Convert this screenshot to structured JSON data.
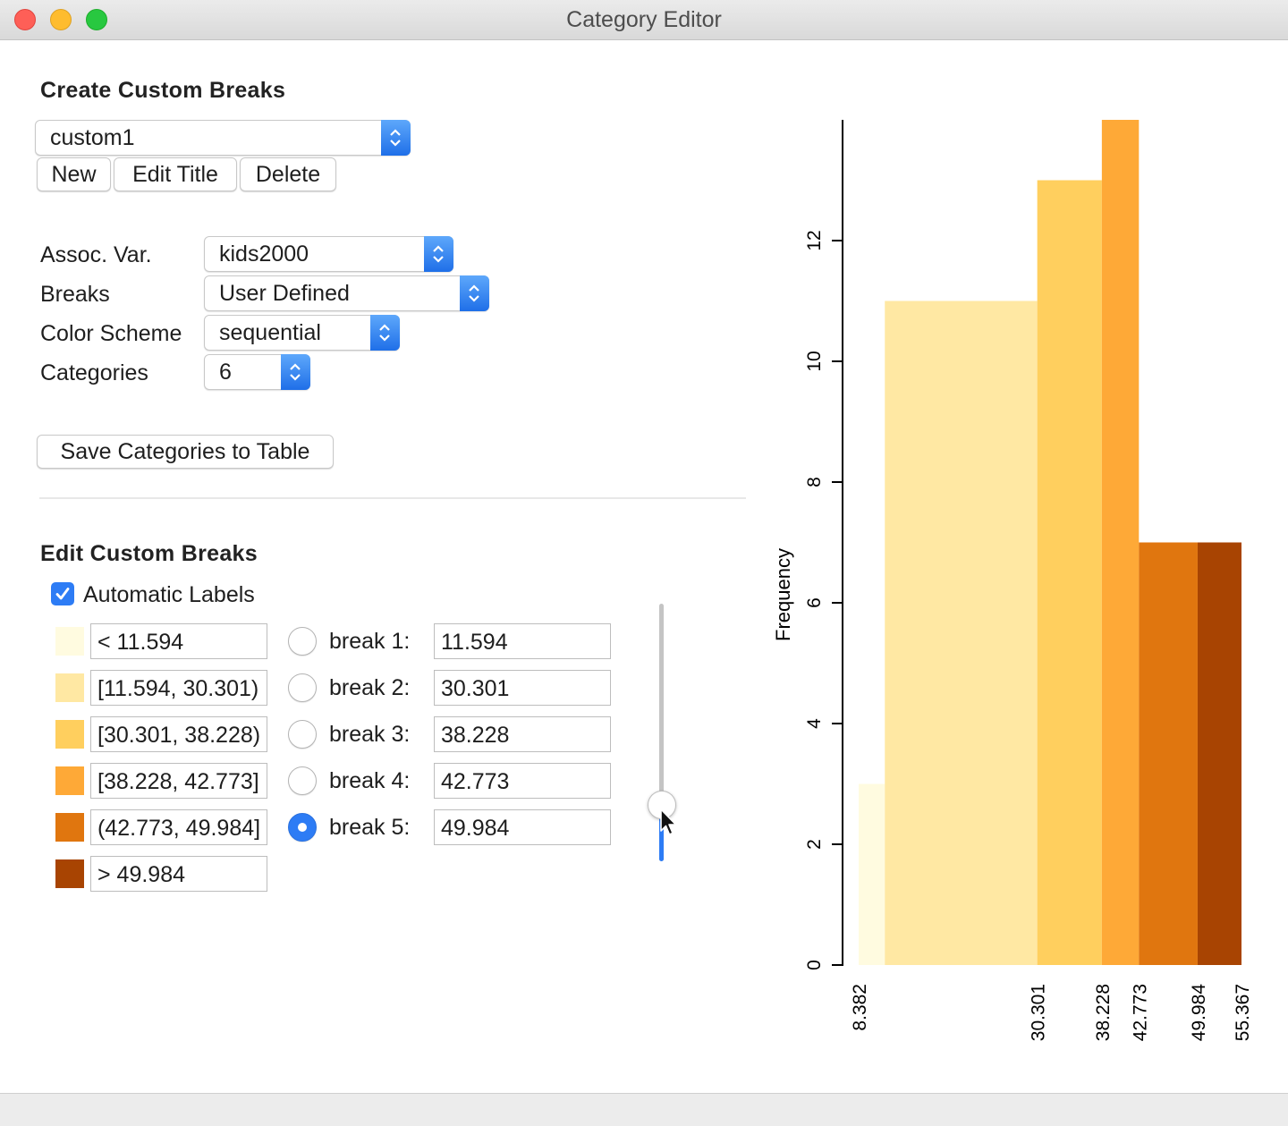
{
  "window": {
    "title": "Category Editor"
  },
  "create_section": {
    "heading": "Create Custom Breaks",
    "selector_value": "custom1",
    "buttons": {
      "new": "New",
      "edit_title": "Edit Title",
      "delete": "Delete"
    }
  },
  "settings": {
    "assoc_var": {
      "label": "Assoc. Var.",
      "value": "kids2000"
    },
    "breaks": {
      "label": "Breaks",
      "value": "User Defined"
    },
    "color_scheme": {
      "label": "Color Scheme",
      "value": "sequential"
    },
    "categories": {
      "label": "Categories",
      "value": "6"
    },
    "save_button": "Save Categories to Table"
  },
  "edit_section": {
    "heading": "Edit Custom Breaks",
    "automatic_labels": {
      "label": "Automatic Labels",
      "checked": true
    },
    "categories": [
      {
        "label": "< 11.594",
        "color": "#fffbe0"
      },
      {
        "label": "[11.594, 30.301)",
        "color": "#ffe8a3"
      },
      {
        "label": "[30.301, 38.228)",
        "color": "#ffcf5e"
      },
      {
        "label": "[38.228, 42.773]",
        "color": "#fea937"
      },
      {
        "label": "(42.773, 49.984]",
        "color": "#e0760f"
      },
      {
        "label": "> 49.984",
        "color": "#a84402"
      }
    ],
    "breaks": [
      {
        "label": "break 1:",
        "value": "11.594",
        "selected": false
      },
      {
        "label": "break 2:",
        "value": "30.301",
        "selected": false
      },
      {
        "label": "break 3:",
        "value": "38.228",
        "selected": false
      },
      {
        "label": "break 4:",
        "value": "42.773",
        "selected": false
      },
      {
        "label": "break 5:",
        "value": "49.984",
        "selected": true
      }
    ],
    "slider_value_fraction": 0.22
  },
  "chart_data": {
    "type": "bar",
    "ylabel": "Frequency",
    "ylim": [
      0,
      14
    ],
    "yticks": [
      0,
      2,
      4,
      6,
      8,
      10,
      12
    ],
    "x_tick_labels": [
      "8.382",
      "30.301",
      "38.228",
      "42.773",
      "49.984",
      "55.367"
    ],
    "bins": [
      {
        "from": 8.382,
        "to": 11.594,
        "frequency": 3,
        "color": "#fffbe0"
      },
      {
        "from": 11.594,
        "to": 30.301,
        "frequency": 11,
        "color": "#ffe8a3"
      },
      {
        "from": 30.301,
        "to": 38.228,
        "frequency": 13,
        "color": "#ffcf5e"
      },
      {
        "from": 38.228,
        "to": 42.773,
        "frequency": 14,
        "color": "#fea937"
      },
      {
        "from": 42.773,
        "to": 49.984,
        "frequency": 7,
        "color": "#e0760f"
      },
      {
        "from": 49.984,
        "to": 55.367,
        "frequency": 7,
        "color": "#a84402"
      }
    ]
  }
}
